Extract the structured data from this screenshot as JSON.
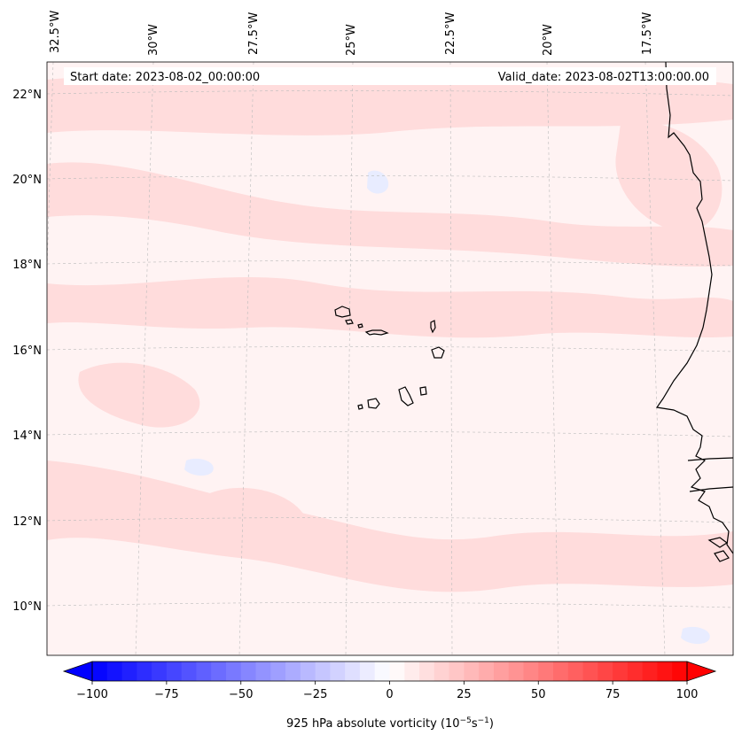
{
  "map": {
    "start_date_label": "Start date: 2023-08-02_00:00:00",
    "valid_date_label": "Valid_date: 2023-08-02T13:00:00.00",
    "lon_labels": [
      "32.5°W",
      "30°W",
      "27.5°W",
      "25°W",
      "22.5°W",
      "20°W",
      "17.5°W"
    ],
    "lat_labels": [
      "22°N",
      "20°N",
      "18°N",
      "16°N",
      "14°N",
      "12°N",
      "10°N"
    ],
    "extent": {
      "lon_min": -33.0,
      "lon_max": -16.2,
      "lat_min": 8.9,
      "lat_max": 22.8
    }
  },
  "colorbar": {
    "label_prefix": "925 hPa absolute vorticity (10",
    "exp1": "−5",
    "label_mid": "s",
    "exp2": "−1",
    "label_suffix": ")",
    "ticks": [
      "−100",
      "−75",
      "−50",
      "−25",
      "0",
      "25",
      "50",
      "75",
      "100"
    ],
    "min": -100,
    "max": 100,
    "step": 5,
    "extend": "both",
    "colors": {
      "neg": "#0000ff",
      "zero": "#ffffff",
      "pos": "#ff0000"
    }
  },
  "colors": {
    "coast": "#000000",
    "grid": "#bbbbbb",
    "field_base": "#fff3f3",
    "field_positive": "#ffdcdc",
    "field_negative": "#e8ecff"
  }
}
